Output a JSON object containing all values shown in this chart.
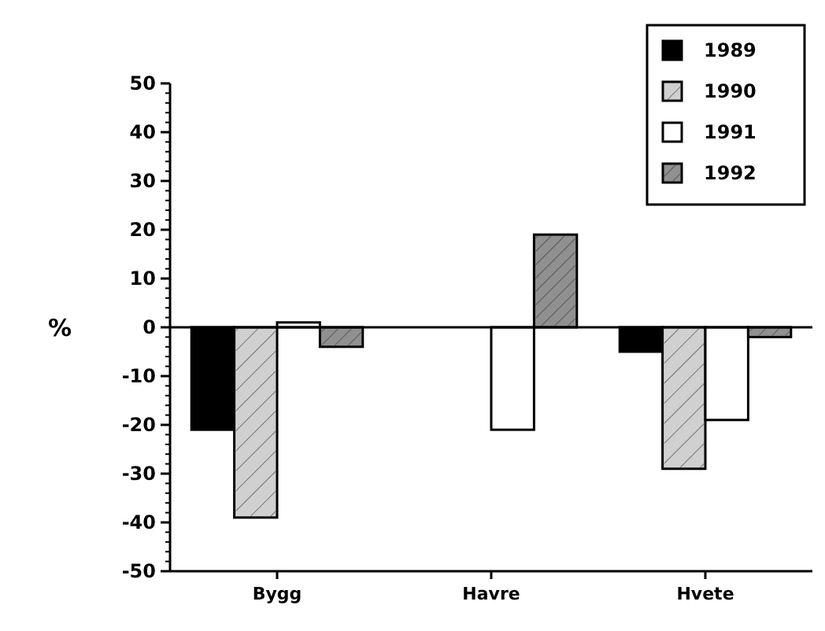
{
  "chart_data": {
    "type": "bar",
    "ylabel": "%",
    "categories": [
      "Bygg",
      "Havre",
      "Hvete"
    ],
    "series": [
      {
        "name": "1989",
        "color": "#000000",
        "values": [
          -21,
          null,
          -5
        ]
      },
      {
        "name": "1990",
        "color": "#d0d0d0",
        "values": [
          -39,
          null,
          -29
        ]
      },
      {
        "name": "1991",
        "color": "#ffffff",
        "values": [
          1,
          -21,
          -19
        ]
      },
      {
        "name": "1992",
        "color": "#909090",
        "values": [
          -4,
          19,
          -2
        ]
      }
    ],
    "ylim": [
      -50,
      50
    ],
    "yticks": [
      -50,
      -40,
      -30,
      -20,
      -10,
      0,
      10,
      20,
      30,
      40,
      50
    ],
    "legend": "top right"
  }
}
